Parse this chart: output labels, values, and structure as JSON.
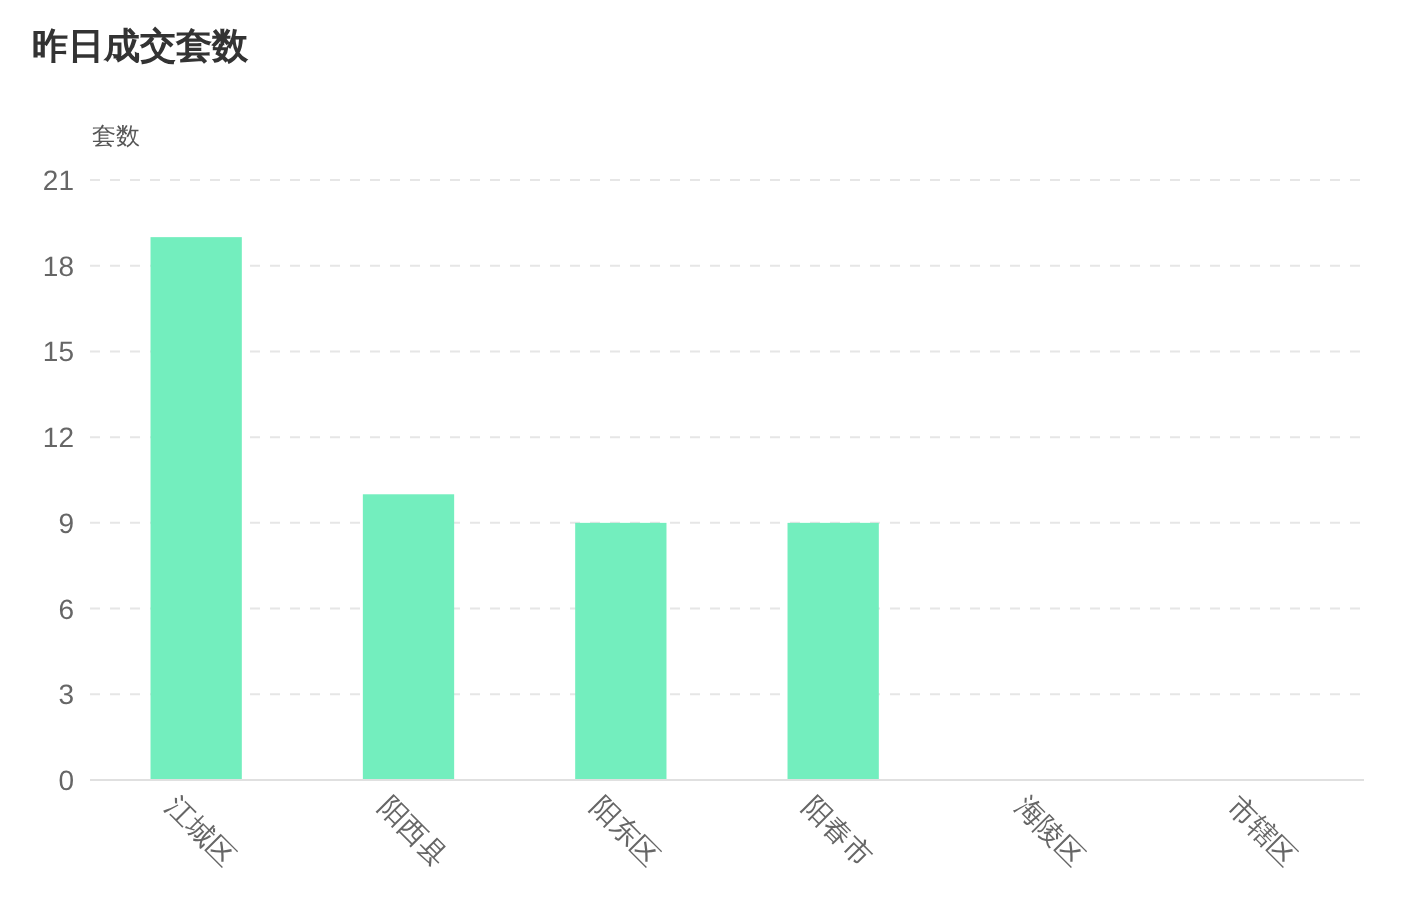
{
  "chart_data": {
    "type": "bar",
    "title": "昨日成交套数",
    "ylabel": "套数",
    "categories": [
      "江城区",
      "阳西县",
      "阳东区",
      "阳春市",
      "海陵区",
      "市辖区"
    ],
    "values": [
      19,
      10,
      9,
      9,
      0,
      0
    ],
    "color": "#73eebe",
    "ylim": [
      0,
      21
    ],
    "yticks": [
      0,
      3,
      6,
      9,
      12,
      15,
      18,
      21
    ],
    "grid": "y"
  }
}
